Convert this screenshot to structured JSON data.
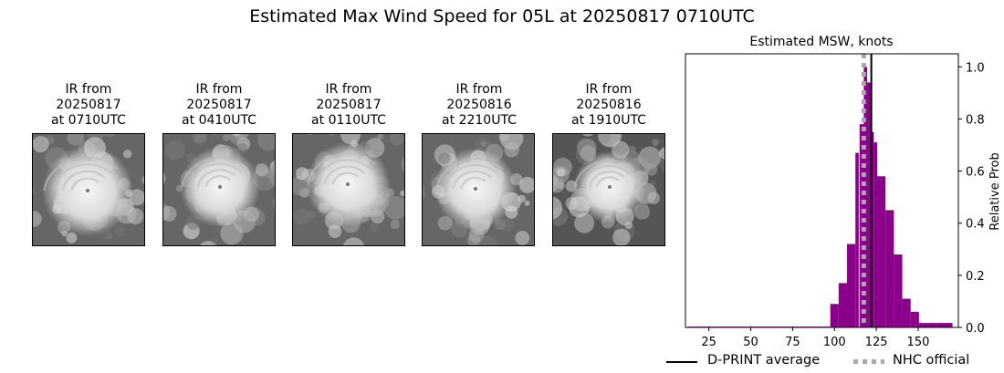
{
  "title": "Estimated Max Wind Speed for 05L at 20250817 0710UTC",
  "ir_panels": [
    {
      "line1": "IR from",
      "line2": "20250817",
      "line3": "at 0710UTC"
    },
    {
      "line1": "IR from",
      "line2": "20250817",
      "line3": "at 0410UTC"
    },
    {
      "line1": "IR from",
      "line2": "20250817",
      "line3": "at 0110UTC"
    },
    {
      "line1": "IR from",
      "line2": "20250816",
      "line3": "at 2210UTC"
    },
    {
      "line1": "IR from",
      "line2": "20250816",
      "line3": "at 1910UTC"
    }
  ],
  "legend": {
    "dprint": "D-PRINT average",
    "nhc": "NHC official"
  },
  "chart_data": {
    "type": "bar",
    "title": "Estimated MSW, knots",
    "xlabel": "",
    "ylabel": "Relative Prob",
    "xlim": [
      11,
      174
    ],
    "ylim": [
      0,
      1.05
    ],
    "xticks": [
      25,
      50,
      75,
      100,
      125,
      150
    ],
    "yticks": [
      0.0,
      0.2,
      0.4,
      0.6,
      0.8,
      1.0
    ],
    "y_axis_side": "right",
    "bin_width": 5,
    "bar_color": "#8b008b",
    "bins": [
      {
        "x": 15,
        "y": 0.003
      },
      {
        "x": 20,
        "y": 0.003
      },
      {
        "x": 25,
        "y": 0.003
      },
      {
        "x": 30,
        "y": 0.003
      },
      {
        "x": 35,
        "y": 0.003
      },
      {
        "x": 40,
        "y": 0.003
      },
      {
        "x": 45,
        "y": 0.003
      },
      {
        "x": 50,
        "y": 0.003
      },
      {
        "x": 55,
        "y": 0.003
      },
      {
        "x": 60,
        "y": 0.003
      },
      {
        "x": 65,
        "y": 0.003
      },
      {
        "x": 70,
        "y": 0.003
      },
      {
        "x": 75,
        "y": 0.003
      },
      {
        "x": 80,
        "y": 0.003
      },
      {
        "x": 85,
        "y": 0.003
      },
      {
        "x": 90,
        "y": 0.003
      },
      {
        "x": 95,
        "y": 0.003
      },
      {
        "x": 100,
        "y": 0.09
      },
      {
        "x": 105,
        "y": 0.17
      },
      {
        "x": 110,
        "y": 0.32
      },
      {
        "x": 113.5,
        "y": 0.67
      },
      {
        "x": 116.5,
        "y": 0.78
      },
      {
        "x": 118.5,
        "y": 1.0
      },
      {
        "x": 120.5,
        "y": 0.94
      },
      {
        "x": 122.5,
        "y": 0.75
      },
      {
        "x": 124.5,
        "y": 0.71
      },
      {
        "x": 128,
        "y": 0.58
      },
      {
        "x": 133,
        "y": 0.45
      },
      {
        "x": 138,
        "y": 0.28
      },
      {
        "x": 143,
        "y": 0.11
      },
      {
        "x": 148,
        "y": 0.06
      },
      {
        "x": 153,
        "y": 0.017
      },
      {
        "x": 158,
        "y": 0.017
      },
      {
        "x": 163,
        "y": 0.017
      },
      {
        "x": 168,
        "y": 0.017
      }
    ],
    "bar_widths": [
      5,
      5,
      5,
      5,
      5,
      5,
      5,
      5,
      5,
      5,
      5,
      5,
      5,
      5,
      5,
      5,
      5,
      5,
      5,
      5,
      2,
      3,
      2,
      2,
      2,
      2,
      5,
      5,
      5,
      5,
      5,
      5,
      5,
      5,
      5
    ],
    "dprint_average": 122,
    "dprint_color": "#000000",
    "nhc_official": 117.5,
    "nhc_color": "#aaaaaa"
  }
}
